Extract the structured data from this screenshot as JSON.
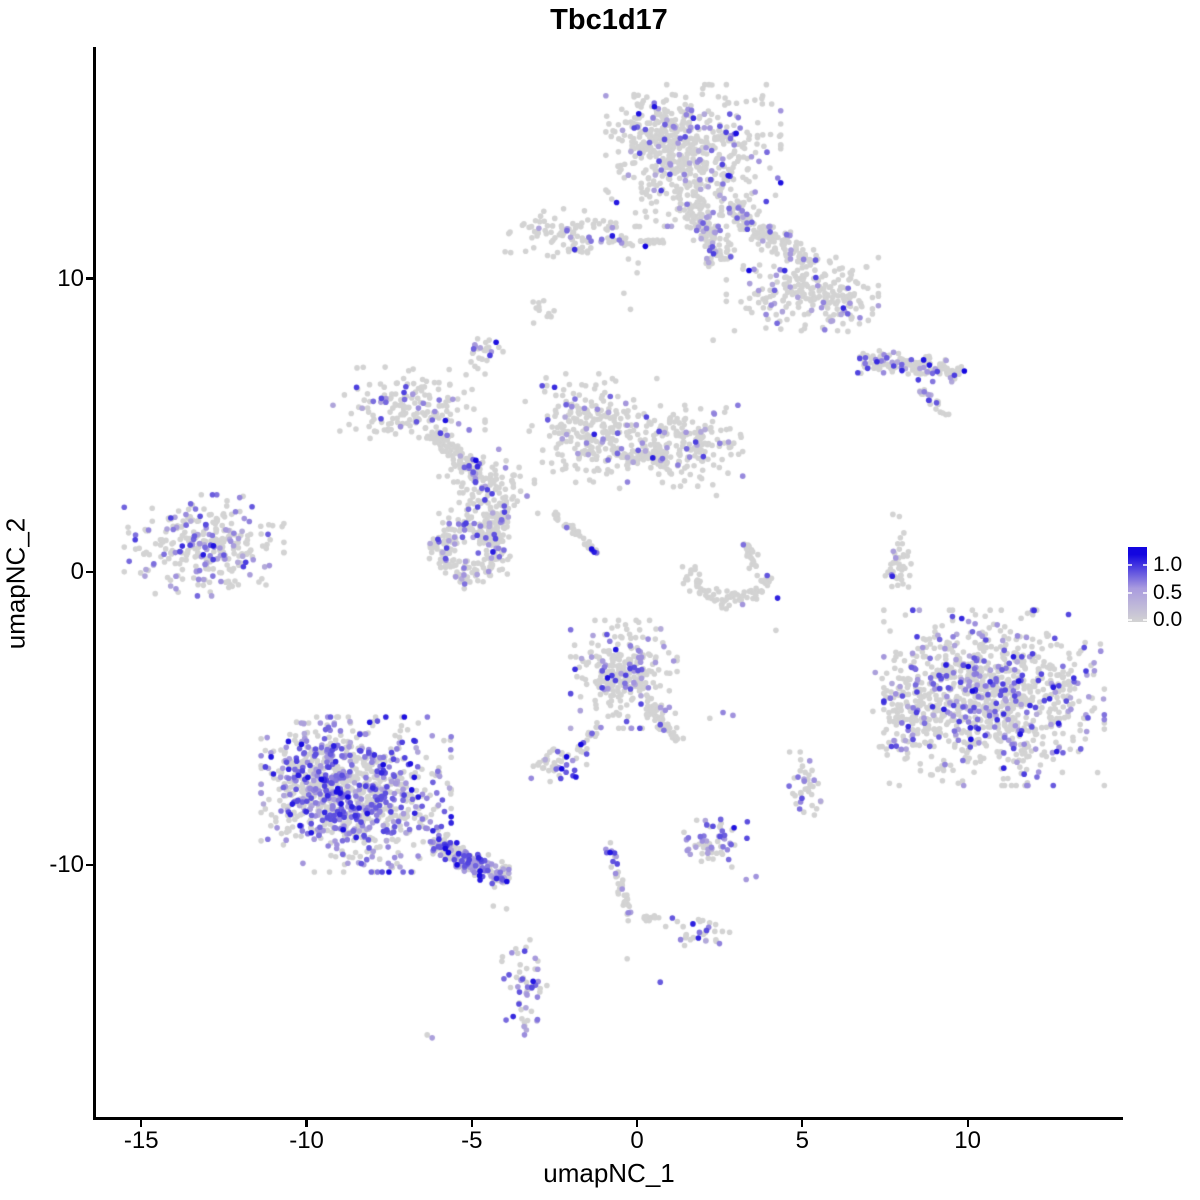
{
  "title": "Tbc1d17",
  "colors": {
    "background": "#ffffff",
    "axis": "#000000",
    "text": "#000000",
    "point_low": "#D3D3D3",
    "point_mid": "#A193DD",
    "point_high": "#1306E0"
  },
  "legend": {
    "ticks": [
      {
        "label": "1.0",
        "value": 1.0
      },
      {
        "label": "0.5",
        "value": 0.5
      },
      {
        "label": "0.0",
        "value": 0.0
      }
    ],
    "gradient_low": "#D3D3D3",
    "gradient_mid": "#A99BDF",
    "gradient_high": "#1306E0"
  },
  "chart_data": {
    "type": "scatter",
    "title": "Tbc1d17",
    "xlabel": "umapNC_1",
    "ylabel": "umapNC_2",
    "xlim": [
      -16.4,
      14.7
    ],
    "ylim": [
      -18.6,
      17.9
    ],
    "x_ticks": [
      -15,
      -10,
      -5,
      0,
      5,
      10
    ],
    "y_ticks": [
      -10,
      0,
      10
    ],
    "grid": false,
    "legend_position": "right",
    "color_scale": {
      "low": 0.0,
      "high": 1.0,
      "low_color": "#D3D3D3",
      "high_color": "#1306E0"
    },
    "point_radius_px": 2.8,
    "seed": 1337,
    "representation": "procedural-clusters (UMAP embedding, ~6000 cells; frac = fraction of cells expressing Tbc1d17)",
    "clusters": [
      {
        "name": "top-main",
        "type": "blob",
        "cx": 1.7,
        "cy": 14.2,
        "sx": 1.15,
        "sy": 1.05,
        "n": 520,
        "frac": 0.13
      },
      {
        "name": "top-main-west",
        "type": "blob",
        "cx": 0.7,
        "cy": 14.9,
        "sx": 0.55,
        "sy": 0.6,
        "n": 120,
        "frac": 0.1
      },
      {
        "name": "top-arm",
        "type": "streak",
        "x1": 1.6,
        "y1": 12.6,
        "x2": 2.6,
        "y2": 10.6,
        "w": 0.5,
        "n": 130,
        "frac": 0.13
      },
      {
        "name": "top-bridge",
        "type": "streak",
        "x1": 2.7,
        "y1": 12.4,
        "x2": 5.4,
        "y2": 10.4,
        "w": 0.5,
        "n": 150,
        "frac": 0.13
      },
      {
        "name": "top-right-blob",
        "type": "blob",
        "cx": 5.0,
        "cy": 9.6,
        "sx": 1.0,
        "sy": 0.6,
        "n": 200,
        "frac": 0.13
      },
      {
        "name": "top-right-tip",
        "type": "blob",
        "cx": 6.2,
        "cy": 9.0,
        "sx": 0.4,
        "sy": 0.35,
        "n": 45,
        "frac": 0.15
      },
      {
        "name": "ear-left",
        "type": "blob",
        "cx": -1.9,
        "cy": 11.5,
        "sx": 0.95,
        "sy": 0.42,
        "n": 110,
        "frac": 0.08
      },
      {
        "name": "ear-string",
        "type": "streak",
        "x1": -0.5,
        "y1": 11.2,
        "x2": 0.9,
        "y2": 11.3,
        "w": 0.12,
        "n": 26,
        "frac": 0.04
      },
      {
        "name": "ear-dark",
        "type": "points",
        "pts": [
          [
            0.25,
            11.1,
            1.0
          ]
        ]
      },
      {
        "name": "tiny-comma",
        "type": "blob",
        "cx": -2.85,
        "cy": 8.9,
        "sx": 0.22,
        "sy": 0.18,
        "n": 11,
        "frac": 0
      },
      {
        "name": "small-purple",
        "type": "blob",
        "cx": -4.7,
        "cy": 7.5,
        "sx": 0.28,
        "sy": 0.3,
        "n": 24,
        "frac": 0.35
      },
      {
        "name": "right-elong",
        "type": "streak",
        "x1": 6.7,
        "y1": 7.2,
        "x2": 9.8,
        "y2": 6.8,
        "w": 0.4,
        "n": 140,
        "frac": 0.22
      },
      {
        "name": "right-elong-tail",
        "type": "streak",
        "x1": 8.6,
        "y1": 6.2,
        "x2": 9.4,
        "y2": 5.3,
        "w": 0.18,
        "n": 22,
        "frac": 0.1
      },
      {
        "name": "right-elong-dark",
        "type": "points",
        "pts": [
          [
            9.9,
            6.85,
            1.0
          ],
          [
            9.6,
            6.7,
            0.8
          ]
        ]
      },
      {
        "name": "net-nw",
        "type": "blob",
        "cx": -6.9,
        "cy": 5.6,
        "sx": 1.0,
        "sy": 0.6,
        "n": 170,
        "frac": 0.12
      },
      {
        "name": "net-arm",
        "type": "streak",
        "x1": -6.2,
        "y1": 4.8,
        "x2": -4.7,
        "y2": 3.2,
        "w": 0.4,
        "n": 90,
        "frac": 0.1
      },
      {
        "name": "net-mid",
        "type": "blob",
        "cx": -4.5,
        "cy": 2.8,
        "sx": 0.65,
        "sy": 0.6,
        "n": 120,
        "frac": 0.12
      },
      {
        "name": "net-neck",
        "type": "streak",
        "x1": -3.9,
        "y1": 2.2,
        "x2": -4.7,
        "y2": 0.9,
        "w": 0.35,
        "n": 60,
        "frac": 0.1
      },
      {
        "name": "net-fan",
        "type": "blob",
        "cx": -1.2,
        "cy": 4.8,
        "sx": 0.95,
        "sy": 0.85,
        "n": 280,
        "frac": 0.1
      },
      {
        "name": "net-bridge",
        "type": "streak",
        "x1": -0.4,
        "y1": 3.8,
        "x2": 0.9,
        "y2": 4.0,
        "w": 0.3,
        "n": 55,
        "frac": 0.08
      },
      {
        "name": "net-east",
        "type": "blob",
        "cx": 1.7,
        "cy": 4.3,
        "sx": 0.65,
        "sy": 0.6,
        "n": 160,
        "frac": 0.11
      },
      {
        "name": "ring-cluster",
        "type": "ring",
        "cx": -5.05,
        "cy": 0.8,
        "r": 0.85,
        "w": 0.55,
        "a1": 0,
        "a2": 360,
        "n": 210,
        "frac": 0.15
      },
      {
        "name": "diag-streak",
        "type": "streak",
        "x1": -2.5,
        "y1": 2.0,
        "x2": -1.2,
        "y2": 0.6,
        "w": 0.13,
        "n": 40,
        "frac": 0.1
      },
      {
        "name": "left-island",
        "type": "blob",
        "cx": -13.1,
        "cy": 0.9,
        "sx": 1.05,
        "sy": 0.75,
        "n": 300,
        "frac": 0.33
      },
      {
        "name": "smile-arc",
        "type": "ring",
        "cx": 2.8,
        "cy": 0.3,
        "r": 1.25,
        "w": 0.3,
        "a1": 185,
        "a2": 345,
        "n": 90,
        "frac": 0.02
      },
      {
        "name": "smile-hook",
        "type": "streak",
        "x1": 3.3,
        "y1": 1.0,
        "x2": 3.6,
        "y2": 0.1,
        "w": 0.2,
        "n": 22,
        "frac": 0.05
      },
      {
        "name": "smile-dark",
        "type": "points",
        "pts": [
          [
            4.25,
            -0.9,
            0.9
          ]
        ]
      },
      {
        "name": "v-string",
        "type": "blob",
        "cx": 7.9,
        "cy": 0.3,
        "sx": 0.17,
        "sy": 0.72,
        "n": 42,
        "frac": 0.12
      },
      {
        "name": "right-main",
        "type": "blob",
        "cx": 10.8,
        "cy": -4.3,
        "sx": 1.45,
        "sy": 1.3,
        "n": 950,
        "frac": 0.24
      },
      {
        "name": "right-west-arm",
        "type": "blob",
        "cx": 8.2,
        "cy": -4.6,
        "sx": 0.5,
        "sy": 0.95,
        "n": 130,
        "frac": 0.14
      },
      {
        "name": "center-mid",
        "type": "blob",
        "cx": -0.4,
        "cy": -3.5,
        "sx": 0.7,
        "sy": 0.8,
        "n": 280,
        "frac": 0.2
      },
      {
        "name": "center-neck",
        "type": "streak",
        "x1": 0.3,
        "y1": -4.6,
        "x2": 1.3,
        "y2": -5.8,
        "w": 0.22,
        "n": 45,
        "frac": 0.12
      },
      {
        "name": "pair",
        "type": "points",
        "pts": [
          [
            2.6,
            -4.8,
            0.55
          ],
          [
            2.9,
            -4.9,
            0.5
          ],
          [
            2.2,
            -5.0,
            0
          ]
        ]
      },
      {
        "name": "small-left-blob",
        "type": "blob",
        "cx": -2.4,
        "cy": -6.6,
        "sx": 0.38,
        "sy": 0.33,
        "n": 48,
        "frac": 0.3
      },
      {
        "name": "small-left-dark",
        "type": "points",
        "pts": [
          [
            -1.85,
            -7.0,
            0.95
          ]
        ]
      },
      {
        "name": "trail-up",
        "type": "streak",
        "x1": -1.9,
        "y1": -6.3,
        "x2": -1.1,
        "y2": -5.2,
        "w": 0.15,
        "n": 20,
        "frac": 0.08
      },
      {
        "name": "blob-se",
        "type": "blob",
        "cx": 5.0,
        "cy": -7.3,
        "sx": 0.28,
        "sy": 0.5,
        "n": 38,
        "frac": 0.18
      },
      {
        "name": "bottomleft-main",
        "type": "blob",
        "cx": -8.5,
        "cy": -7.6,
        "sx": 1.25,
        "sy": 1.15,
        "n": 850,
        "frac": 0.44
      },
      {
        "name": "bottomleft-west",
        "type": "blob",
        "cx": -9.7,
        "cy": -7.0,
        "sx": 0.6,
        "sy": 0.8,
        "n": 200,
        "frac": 0.44
      },
      {
        "name": "bottomleft-tail",
        "type": "streak",
        "x1": -6.2,
        "y1": -9.2,
        "x2": -3.9,
        "y2": -10.5,
        "w": 0.42,
        "n": 200,
        "frac": 0.5
      },
      {
        "name": "two-greys",
        "type": "points",
        "pts": [
          [
            -4.35,
            -11.4,
            0
          ],
          [
            -3.95,
            -11.5,
            0
          ]
        ]
      },
      {
        "name": "v-down",
        "type": "streak",
        "x1": -0.9,
        "y1": -9.1,
        "x2": -0.2,
        "y2": -11.9,
        "w": 0.18,
        "n": 40,
        "frac": 0.2
      },
      {
        "name": "v-out",
        "type": "streak",
        "x1": 0.0,
        "y1": -11.9,
        "x2": 0.9,
        "y2": -11.7,
        "w": 0.1,
        "n": 10,
        "frac": 0
      },
      {
        "name": "blob-bot",
        "type": "blob",
        "cx": 1.9,
        "cy": -12.3,
        "sx": 0.45,
        "sy": 0.25,
        "n": 32,
        "frac": 0.25
      },
      {
        "name": "round-purple",
        "type": "blob",
        "cx": 2.3,
        "cy": -9.2,
        "sx": 0.45,
        "sy": 0.38,
        "n": 60,
        "frac": 0.55
      },
      {
        "name": "bottom-vert",
        "type": "blob",
        "cx": -3.4,
        "cy": -14.3,
        "sx": 0.3,
        "sy": 0.8,
        "n": 55,
        "frac": 0.45
      },
      {
        "name": "single-sw",
        "type": "points",
        "pts": [
          [
            -6.2,
            -15.9,
            0.4
          ],
          [
            -6.35,
            -15.8,
            0
          ]
        ]
      },
      {
        "name": "stragglers",
        "type": "points",
        "pts": [
          [
            0.7,
            -14.0,
            0.7
          ],
          [
            -0.3,
            -13.2,
            0
          ],
          [
            4.2,
            -2.0,
            0
          ],
          [
            2.4,
            2.6,
            0
          ],
          [
            1.1,
            2.9,
            0
          ],
          [
            2.3,
            7.9,
            0
          ],
          [
            -0.2,
            8.95,
            0
          ],
          [
            3.6,
            -10.4,
            0.5
          ],
          [
            3.3,
            -10.5,
            0.45
          ],
          [
            0.0,
            10.2,
            0
          ],
          [
            -0.4,
            9.5,
            0
          ]
        ]
      }
    ]
  }
}
